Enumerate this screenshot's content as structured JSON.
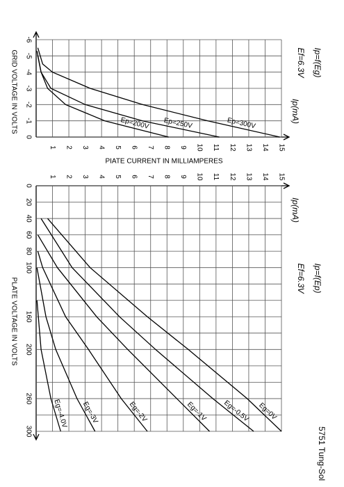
{
  "chart_data": [
    {
      "type": "line",
      "title": "Ip=f(Eg)",
      "subtitle": "Ef=6.3V",
      "x_label": "Ip(mA)",
      "y_label": "GRID VOLTAGE IN VOLTS",
      "xlim": [
        0,
        15
      ],
      "xticks": [
        1,
        2,
        3,
        4,
        5,
        6,
        7,
        8,
        9,
        10,
        11,
        12,
        13,
        14,
        15
      ],
      "ylim": [
        0,
        -6
      ],
      "yticks": [
        0,
        -1,
        -2,
        -3,
        -4,
        -5,
        -6
      ],
      "grid": true,
      "color": "#000000",
      "series": [
        {
          "name": "Ep=200V",
          "x": [
            0.1,
            0.3,
            0.7,
            1.8,
            4.2,
            8.1
          ],
          "values": [
            -5,
            -4,
            -3,
            -2,
            -1,
            0
          ]
        },
        {
          "name": "Ep=250V",
          "x": [
            0.05,
            0.3,
            0.9,
            3,
            6.5,
            11.2
          ],
          "values": [
            -5.3,
            -4,
            -3,
            -2,
            -1,
            0
          ]
        },
        {
          "name": "Ep=300V",
          "x": [
            0.1,
            0.4,
            1,
            3.3,
            6.5,
            10.5,
            14.9
          ],
          "values": [
            -5.5,
            -4.5,
            -4,
            -3,
            -2,
            -1,
            0
          ]
        }
      ]
    },
    {
      "type": "line",
      "title": "Ip=f(Ep)",
      "subtitle": "Ef=6.3V",
      "x_label": "Ip(mA)",
      "y_label": "PLATE VOLTAGE IN VOLTS",
      "xlim": [
        0,
        15
      ],
      "xticks": [
        1,
        2,
        3,
        4,
        5,
        6,
        7,
        8,
        9,
        10,
        11,
        12,
        13,
        14,
        15
      ],
      "ylim": [
        0,
        300
      ],
      "yticks": [
        0,
        20,
        40,
        60,
        80,
        100,
        160,
        200,
        260,
        300
      ],
      "ygrid": [
        0,
        20,
        40,
        60,
        80,
        100,
        120,
        140,
        160,
        180,
        200,
        220,
        240,
        260,
        280,
        300
      ],
      "grid": true,
      "color": "#000000",
      "series": [
        {
          "name": "Eg=0V",
          "x": [
            0.7,
            3.3,
            6.8,
            9.3,
            12.9,
            15
          ],
          "values": [
            40,
            100,
            160,
            200,
            260,
            300
          ]
        },
        {
          "name": "Eg=-0.5V",
          "x": [
            0.3,
            2.2,
            5.1,
            7.3,
            10.8,
            13.3
          ],
          "values": [
            40,
            100,
            160,
            200,
            260,
            300
          ]
        },
        {
          "name": "Eg=-1V",
          "x": [
            0.1,
            1.3,
            3.7,
            5.6,
            8.6,
            10.6
          ],
          "values": [
            60,
            100,
            160,
            200,
            260,
            300
          ]
        },
        {
          "name": "Eg=-2V",
          "x": [
            0.1,
            0.4,
            1.8,
            3.2,
            5.2,
            6.8
          ],
          "values": [
            80,
            100,
            160,
            200,
            260,
            300
          ]
        },
        {
          "name": "Eg=-3V",
          "x": [
            0.05,
            0.6,
            1.2,
            2.5,
            3.6
          ],
          "values": [
            100,
            160,
            200,
            260,
            300
          ]
        },
        {
          "name": "Eg=-4.0V",
          "x": [
            0.05,
            0.3,
            0.9,
            1.5
          ],
          "values": [
            140,
            200,
            260,
            300
          ]
        }
      ]
    }
  ],
  "x_title": "PIATE CURRENT IN MILLIAMPERES",
  "footer": "5751 Tung-Sol"
}
